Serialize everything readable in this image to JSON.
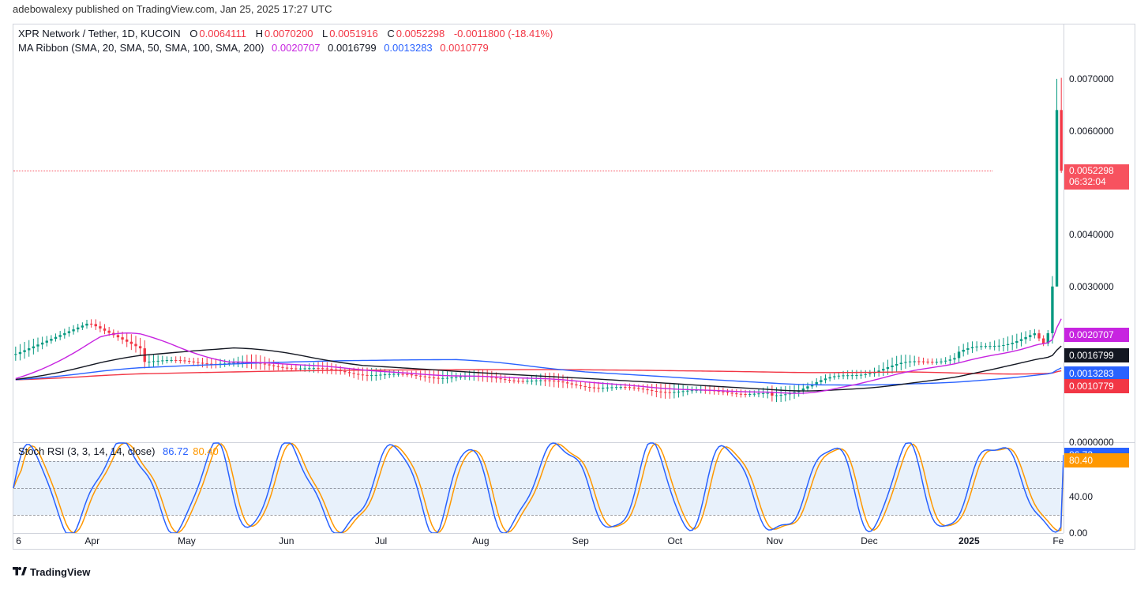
{
  "header": {
    "text": "adebowalexy published on TradingView.com, Jan 25, 2025 17:27 UTC"
  },
  "symbol_legend": {
    "pair": "XPR Network / Tether, 1D, KUCOIN",
    "o_label": "O",
    "o_value": "0.0064111",
    "h_label": "H",
    "h_value": "0.0070200",
    "l_label": "L",
    "l_value": "0.0051916",
    "c_label": "C",
    "c_value": "0.0052298",
    "change": "-0.0011800 (-18.41%)",
    "up_color": "#f23645"
  },
  "ma_legend": {
    "title": "MA Ribbon (SMA, 20, SMA, 50, SMA, 100, SMA, 200)",
    "v1": "0.0020707",
    "c1": "#c724e0",
    "v2": "0.0016799",
    "c2": "#131722",
    "v3": "0.0013283",
    "c3": "#2962ff",
    "v4": "0.0010779",
    "c4": "#f23645"
  },
  "price_chart": {
    "type": "candlestick",
    "ylim": [
      0,
      0.0075
    ],
    "yticks": [
      0,
      0.003,
      0.004,
      0.006,
      0.007
    ],
    "ytick_labels": [
      "0.0000000",
      "0.0030000",
      "0.0040000",
      "0.0060000",
      "0.0070000"
    ],
    "current_price": 0.0052298,
    "current_tag_text": "0.0052298",
    "current_tag_sub": "06:32:04",
    "current_tag_color": "#f7525f",
    "ma_tags": [
      {
        "value": 0.0020707,
        "text": "0.0020707",
        "color": "#c724e0"
      },
      {
        "value": 0.0016799,
        "text": "0.0016799",
        "color": "#131722"
      },
      {
        "value": 0.0013283,
        "text": "0.0013283",
        "color": "#2962ff"
      },
      {
        "value": 0.0010779,
        "text": "0.0010779",
        "color": "#f23645"
      }
    ],
    "colors": {
      "up": "#089981",
      "down": "#f23645",
      "wick_up": "#089981",
      "wick_down": "#f23645"
    },
    "ma_colors": {
      "sma20": "#c724e0",
      "sma50": "#131722",
      "sma100": "#2962ff",
      "sma200": "#f23645"
    }
  },
  "xaxis": {
    "ticks": [
      {
        "pos": 0.005,
        "label": "6"
      },
      {
        "pos": 0.075,
        "label": "Apr"
      },
      {
        "pos": 0.165,
        "label": "May"
      },
      {
        "pos": 0.26,
        "label": "Jun"
      },
      {
        "pos": 0.35,
        "label": "Jul"
      },
      {
        "pos": 0.445,
        "label": "Aug"
      },
      {
        "pos": 0.54,
        "label": "Sep"
      },
      {
        "pos": 0.63,
        "label": "Oct"
      },
      {
        "pos": 0.725,
        "label": "Nov"
      },
      {
        "pos": 0.815,
        "label": "Dec"
      },
      {
        "pos": 0.91,
        "label": "2025",
        "bold": true
      },
      {
        "pos": 0.995,
        "label": "Fe"
      }
    ]
  },
  "stoch": {
    "title": "Stoch RSI (3, 3, 14, 14, close)",
    "k_label": "86.72",
    "k_color": "#2962ff",
    "d_label": "80.40",
    "d_color": "#ff9800",
    "ylim": [
      0,
      100
    ],
    "band": [
      20,
      80
    ],
    "band_color": "#e8f1fb",
    "dash_levels": [
      20,
      50,
      80
    ],
    "yticks": [
      0,
      40
    ],
    "ytick_labels": [
      "0.00",
      "40.00"
    ],
    "tags": [
      {
        "value": 86.72,
        "text": "86.72",
        "color": "#2962ff"
      },
      {
        "value": 80.4,
        "text": "80.40",
        "color": "#ff9800"
      }
    ]
  },
  "watermark": "TradingView"
}
